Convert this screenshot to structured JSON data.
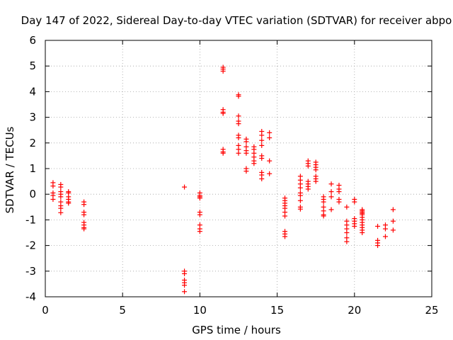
{
  "chart_data": {
    "type": "scatter",
    "title": "Day 147 of 2022, Sidereal Day-to-day VTEC variation (SDTVAR) for receiver abpo",
    "xlabel": "GPS time / hours",
    "ylabel": "SDTVAR / TECUs",
    "xlim": [
      0,
      25
    ],
    "ylim": [
      -4,
      6
    ],
    "xticks": [
      0,
      5,
      10,
      15,
      20,
      25
    ],
    "yticks": [
      -4,
      -3,
      -2,
      -1,
      0,
      1,
      2,
      3,
      4,
      5,
      6
    ],
    "grid": true,
    "marker": "+",
    "colors": {
      "points": "#ff0000",
      "axes": "#000000",
      "grid": "#a0a0a0"
    },
    "series": [
      {
        "name": "SDTVAR",
        "points": [
          [
            0.5,
            0.45
          ],
          [
            0.5,
            0.32
          ],
          [
            0.5,
            0.05
          ],
          [
            0.5,
            -0.05
          ],
          [
            0.5,
            -0.2
          ],
          [
            1.0,
            0.38
          ],
          [
            1.0,
            0.28
          ],
          [
            1.0,
            0.1
          ],
          [
            1.0,
            0.0
          ],
          [
            1.0,
            -0.1
          ],
          [
            1.0,
            -0.3
          ],
          [
            1.0,
            -0.45
          ],
          [
            1.0,
            -0.55
          ],
          [
            1.0,
            -0.72
          ],
          [
            1.5,
            0.1
          ],
          [
            1.5,
            0.05
          ],
          [
            1.5,
            -0.1
          ],
          [
            1.5,
            -0.2
          ],
          [
            1.5,
            -0.3
          ],
          [
            1.5,
            -0.35
          ],
          [
            2.5,
            -0.3
          ],
          [
            2.5,
            -0.4
          ],
          [
            2.5,
            -0.7
          ],
          [
            2.5,
            -0.8
          ],
          [
            2.5,
            -1.1
          ],
          [
            2.5,
            -1.2
          ],
          [
            2.5,
            -1.3
          ],
          [
            2.5,
            -1.35
          ],
          [
            9.0,
            0.28
          ],
          [
            9.0,
            -3.0
          ],
          [
            9.0,
            -3.1
          ],
          [
            9.0,
            -3.35
          ],
          [
            9.0,
            -3.45
          ],
          [
            9.0,
            -3.55
          ],
          [
            9.0,
            -3.8
          ],
          [
            10.0,
            0.05
          ],
          [
            10.0,
            -0.05
          ],
          [
            10.0,
            -0.1
          ],
          [
            10.0,
            -0.15
          ],
          [
            10.0,
            -0.7
          ],
          [
            10.0,
            -0.8
          ],
          [
            10.0,
            -1.2
          ],
          [
            10.0,
            -1.35
          ],
          [
            10.0,
            -1.45
          ],
          [
            11.5,
            4.95
          ],
          [
            11.5,
            4.88
          ],
          [
            11.5,
            4.8
          ],
          [
            11.5,
            3.3
          ],
          [
            11.5,
            3.2
          ],
          [
            11.5,
            3.15
          ],
          [
            11.5,
            1.75
          ],
          [
            11.5,
            1.65
          ],
          [
            11.5,
            1.6
          ],
          [
            12.5,
            3.88
          ],
          [
            12.5,
            3.82
          ],
          [
            12.5,
            3.05
          ],
          [
            12.5,
            2.85
          ],
          [
            12.5,
            2.75
          ],
          [
            12.5,
            2.3
          ],
          [
            12.5,
            2.2
          ],
          [
            12.5,
            1.9
          ],
          [
            12.5,
            1.75
          ],
          [
            12.5,
            1.6
          ],
          [
            13.0,
            2.15
          ],
          [
            13.0,
            2.05
          ],
          [
            13.0,
            1.85
          ],
          [
            13.0,
            1.7
          ],
          [
            13.0,
            1.6
          ],
          [
            13.0,
            1.0
          ],
          [
            13.0,
            0.9
          ],
          [
            13.5,
            1.85
          ],
          [
            13.5,
            1.75
          ],
          [
            13.5,
            1.6
          ],
          [
            13.5,
            1.45
          ],
          [
            13.5,
            1.3
          ],
          [
            13.5,
            1.2
          ],
          [
            14.0,
            2.45
          ],
          [
            14.0,
            2.3
          ],
          [
            14.0,
            2.1
          ],
          [
            14.0,
            1.9
          ],
          [
            14.0,
            1.5
          ],
          [
            14.0,
            1.4
          ],
          [
            14.0,
            0.85
          ],
          [
            14.0,
            0.75
          ],
          [
            14.0,
            0.6
          ],
          [
            14.5,
            2.4
          ],
          [
            14.5,
            2.2
          ],
          [
            14.5,
            1.3
          ],
          [
            14.5,
            0.8
          ],
          [
            15.5,
            -0.15
          ],
          [
            15.5,
            -0.25
          ],
          [
            15.5,
            -0.35
          ],
          [
            15.5,
            -0.45
          ],
          [
            15.5,
            -0.55
          ],
          [
            15.5,
            -0.7
          ],
          [
            15.5,
            -0.85
          ],
          [
            15.5,
            -1.45
          ],
          [
            15.5,
            -1.55
          ],
          [
            15.5,
            -1.65
          ],
          [
            16.5,
            0.7
          ],
          [
            16.5,
            0.55
          ],
          [
            16.5,
            0.4
          ],
          [
            16.5,
            0.25
          ],
          [
            16.5,
            0.05
          ],
          [
            16.5,
            -0.05
          ],
          [
            16.5,
            -0.25
          ],
          [
            16.5,
            -0.5
          ],
          [
            16.5,
            -0.58
          ],
          [
            17.0,
            1.3
          ],
          [
            17.0,
            1.2
          ],
          [
            17.0,
            1.1
          ],
          [
            17.0,
            0.5
          ],
          [
            17.0,
            0.4
          ],
          [
            17.0,
            0.3
          ],
          [
            17.0,
            0.2
          ],
          [
            17.5,
            1.25
          ],
          [
            17.5,
            1.15
          ],
          [
            17.5,
            1.05
          ],
          [
            17.5,
            0.95
          ],
          [
            17.5,
            0.7
          ],
          [
            17.5,
            0.6
          ],
          [
            17.5,
            0.5
          ],
          [
            18.0,
            -0.1
          ],
          [
            18.0,
            -0.2
          ],
          [
            18.0,
            -0.3
          ],
          [
            18.0,
            -0.5
          ],
          [
            18.0,
            -0.65
          ],
          [
            18.0,
            -0.8
          ],
          [
            18.0,
            -0.85
          ],
          [
            18.5,
            0.4
          ],
          [
            18.5,
            0.1
          ],
          [
            18.5,
            -0.1
          ],
          [
            18.5,
            -0.6
          ],
          [
            19.0,
            0.35
          ],
          [
            19.0,
            0.2
          ],
          [
            19.0,
            0.1
          ],
          [
            19.0,
            -0.2
          ],
          [
            19.0,
            -0.3
          ],
          [
            19.5,
            -0.5
          ],
          [
            19.5,
            -1.05
          ],
          [
            19.5,
            -1.2
          ],
          [
            19.5,
            -1.35
          ],
          [
            19.5,
            -1.5
          ],
          [
            19.5,
            -1.7
          ],
          [
            19.5,
            -1.85
          ],
          [
            20.0,
            -0.2
          ],
          [
            20.0,
            -0.3
          ],
          [
            20.0,
            -0.95
          ],
          [
            20.0,
            -1.05
          ],
          [
            20.0,
            -1.15
          ],
          [
            20.0,
            -1.25
          ],
          [
            20.5,
            -0.6
          ],
          [
            20.5,
            -0.65
          ],
          [
            20.5,
            -0.7
          ],
          [
            20.5,
            -0.75
          ],
          [
            20.5,
            -0.8
          ],
          [
            20.5,
            -0.9
          ],
          [
            20.5,
            -1.0
          ],
          [
            20.5,
            -1.1
          ],
          [
            20.5,
            -1.2
          ],
          [
            20.5,
            -1.3
          ],
          [
            20.5,
            -1.4
          ],
          [
            20.5,
            -1.5
          ],
          [
            21.5,
            -1.25
          ],
          [
            21.5,
            -1.8
          ],
          [
            21.5,
            -1.9
          ],
          [
            21.5,
            -2.0
          ],
          [
            22.0,
            -1.2
          ],
          [
            22.0,
            -1.35
          ],
          [
            22.0,
            -1.65
          ],
          [
            22.5,
            -0.6
          ],
          [
            22.5,
            -1.05
          ],
          [
            22.5,
            -1.4
          ]
        ]
      }
    ]
  }
}
